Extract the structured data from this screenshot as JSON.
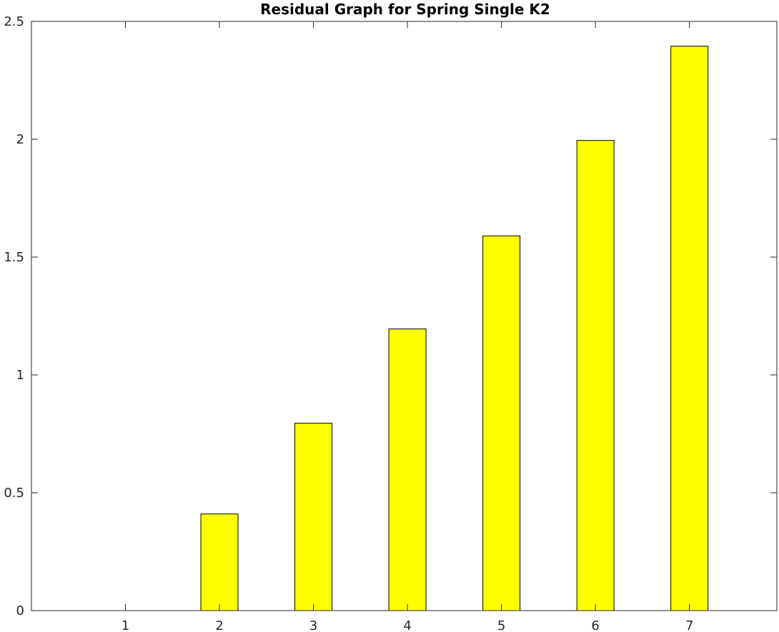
{
  "chart_data": {
    "type": "bar",
    "title": "Residual Graph for Spring Single K2",
    "xlabel": "",
    "ylabel": "",
    "categories": [
      "1",
      "2",
      "3",
      "4",
      "5",
      "6",
      "7"
    ],
    "x": [
      1,
      2,
      3,
      4,
      5,
      6,
      7
    ],
    "values": [
      0,
      0.41,
      0.795,
      1.195,
      1.59,
      1.995,
      2.395
    ],
    "xlim": [
      0.0,
      7.93
    ],
    "ylim": [
      0,
      2.5
    ],
    "yticks": [
      0,
      0.5,
      1,
      1.5,
      2,
      2.5
    ],
    "ytick_labels": [
      "0",
      "0.5",
      "1",
      "1.5",
      "2",
      "2.5"
    ],
    "xticks": [
      1,
      2,
      3,
      4,
      5,
      6,
      7
    ],
    "xtick_labels": [
      "1",
      "2",
      "3",
      "4",
      "5",
      "6",
      "7"
    ],
    "grid": false,
    "box": true,
    "bar_color": "#ffff00",
    "edge_color": "#000000"
  }
}
